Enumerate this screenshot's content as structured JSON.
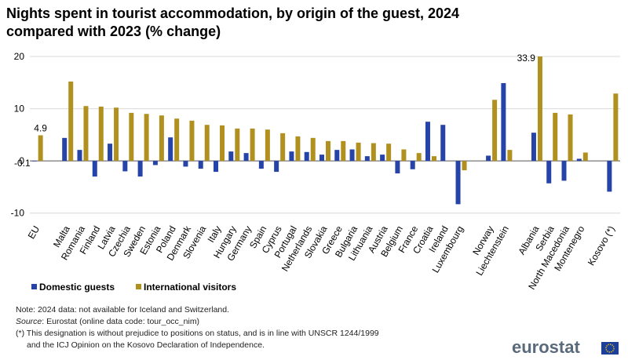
{
  "chart_data": {
    "type": "bar",
    "title": "Nights spent in tourist accommodation, by origin of the guest, 2024 compared with 2023 (% change)",
    "categories": [
      "EU",
      null,
      "Malta",
      "Romania",
      "Finland",
      "Latvia",
      "Czechia",
      "Sweden",
      "Estonia",
      "Poland",
      "Denmark",
      "Slovenia",
      "Italy",
      "Hungary",
      "Germany",
      "Spain",
      "Cyprus",
      "Portugal",
      "Netherlands",
      "Slovakia",
      "Greece",
      "Bulgaria",
      "Lithuania",
      "Austria",
      "Belgium",
      "France",
      "Croatia",
      "Ireland",
      "Luxembourg",
      null,
      "Norway",
      "Liechtenstein",
      null,
      "Albania",
      "Serbia",
      "North Macedonia",
      "Montenegro",
      null,
      "Kosovo (*)"
    ],
    "series": [
      {
        "name": "Domestic guests",
        "color": "#2644a7",
        "values": [
          -0.1,
          null,
          4.4,
          2.1,
          -3.0,
          3.3,
          -2.0,
          -3.0,
          -0.8,
          4.5,
          -1.1,
          -1.5,
          -2.1,
          1.8,
          1.5,
          -1.5,
          -2.1,
          1.8,
          1.7,
          1.2,
          2.1,
          2.2,
          0.9,
          1.2,
          -2.4,
          -1.6,
          7.5,
          6.9,
          -8.3,
          null,
          1.0,
          14.9,
          null,
          5.4,
          -4.3,
          -3.8,
          0.4,
          null,
          -5.9
        ],
        "value_labels": [
          "-0.1",
          null,
          null,
          null,
          null,
          null,
          null,
          null,
          null,
          null,
          null,
          null,
          null,
          null,
          null,
          null,
          null,
          null,
          null,
          null,
          null,
          null,
          null,
          null,
          null,
          null,
          null,
          null,
          null,
          null,
          null,
          null,
          null,
          null,
          null,
          null,
          null,
          null,
          null
        ]
      },
      {
        "name": "International visitors",
        "color": "#b09120",
        "values": [
          4.9,
          null,
          15.2,
          10.5,
          10.4,
          10.2,
          9.2,
          9.0,
          8.7,
          8.1,
          7.7,
          6.9,
          6.8,
          6.2,
          6.2,
          6.0,
          5.3,
          4.7,
          4.4,
          3.8,
          3.8,
          3.5,
          3.4,
          3.3,
          2.2,
          1.5,
          0.9,
          null,
          -1.8,
          null,
          11.7,
          2.1,
          null,
          33.9,
          9.2,
          8.9,
          1.6,
          null,
          12.9
        ],
        "value_labels": [
          "4.9",
          null,
          null,
          null,
          null,
          null,
          null,
          null,
          null,
          null,
          null,
          null,
          null,
          null,
          null,
          null,
          null,
          null,
          null,
          null,
          null,
          null,
          null,
          null,
          null,
          null,
          null,
          null,
          null,
          null,
          null,
          null,
          null,
          "33.9",
          null,
          null,
          null,
          null,
          null
        ]
      }
    ],
    "ylim": [
      -12,
      20
    ],
    "yticks": [
      -10,
      0,
      10,
      20
    ],
    "grid": true,
    "legend": "bottom-left"
  },
  "note": "Note: 2024 data: not available for Iceland and Switzerland.",
  "source_label": "Source",
  "source": ": Eurostat (online data code: tour_occ_nim)",
  "footnote": [
    "(*) This designation is without prejudice to positions on status, and is in line with UNSCR 1244/1999",
    "and the ICJ Opinion on the Kosovo Declaration of Independence."
  ],
  "logo": "eurostat"
}
